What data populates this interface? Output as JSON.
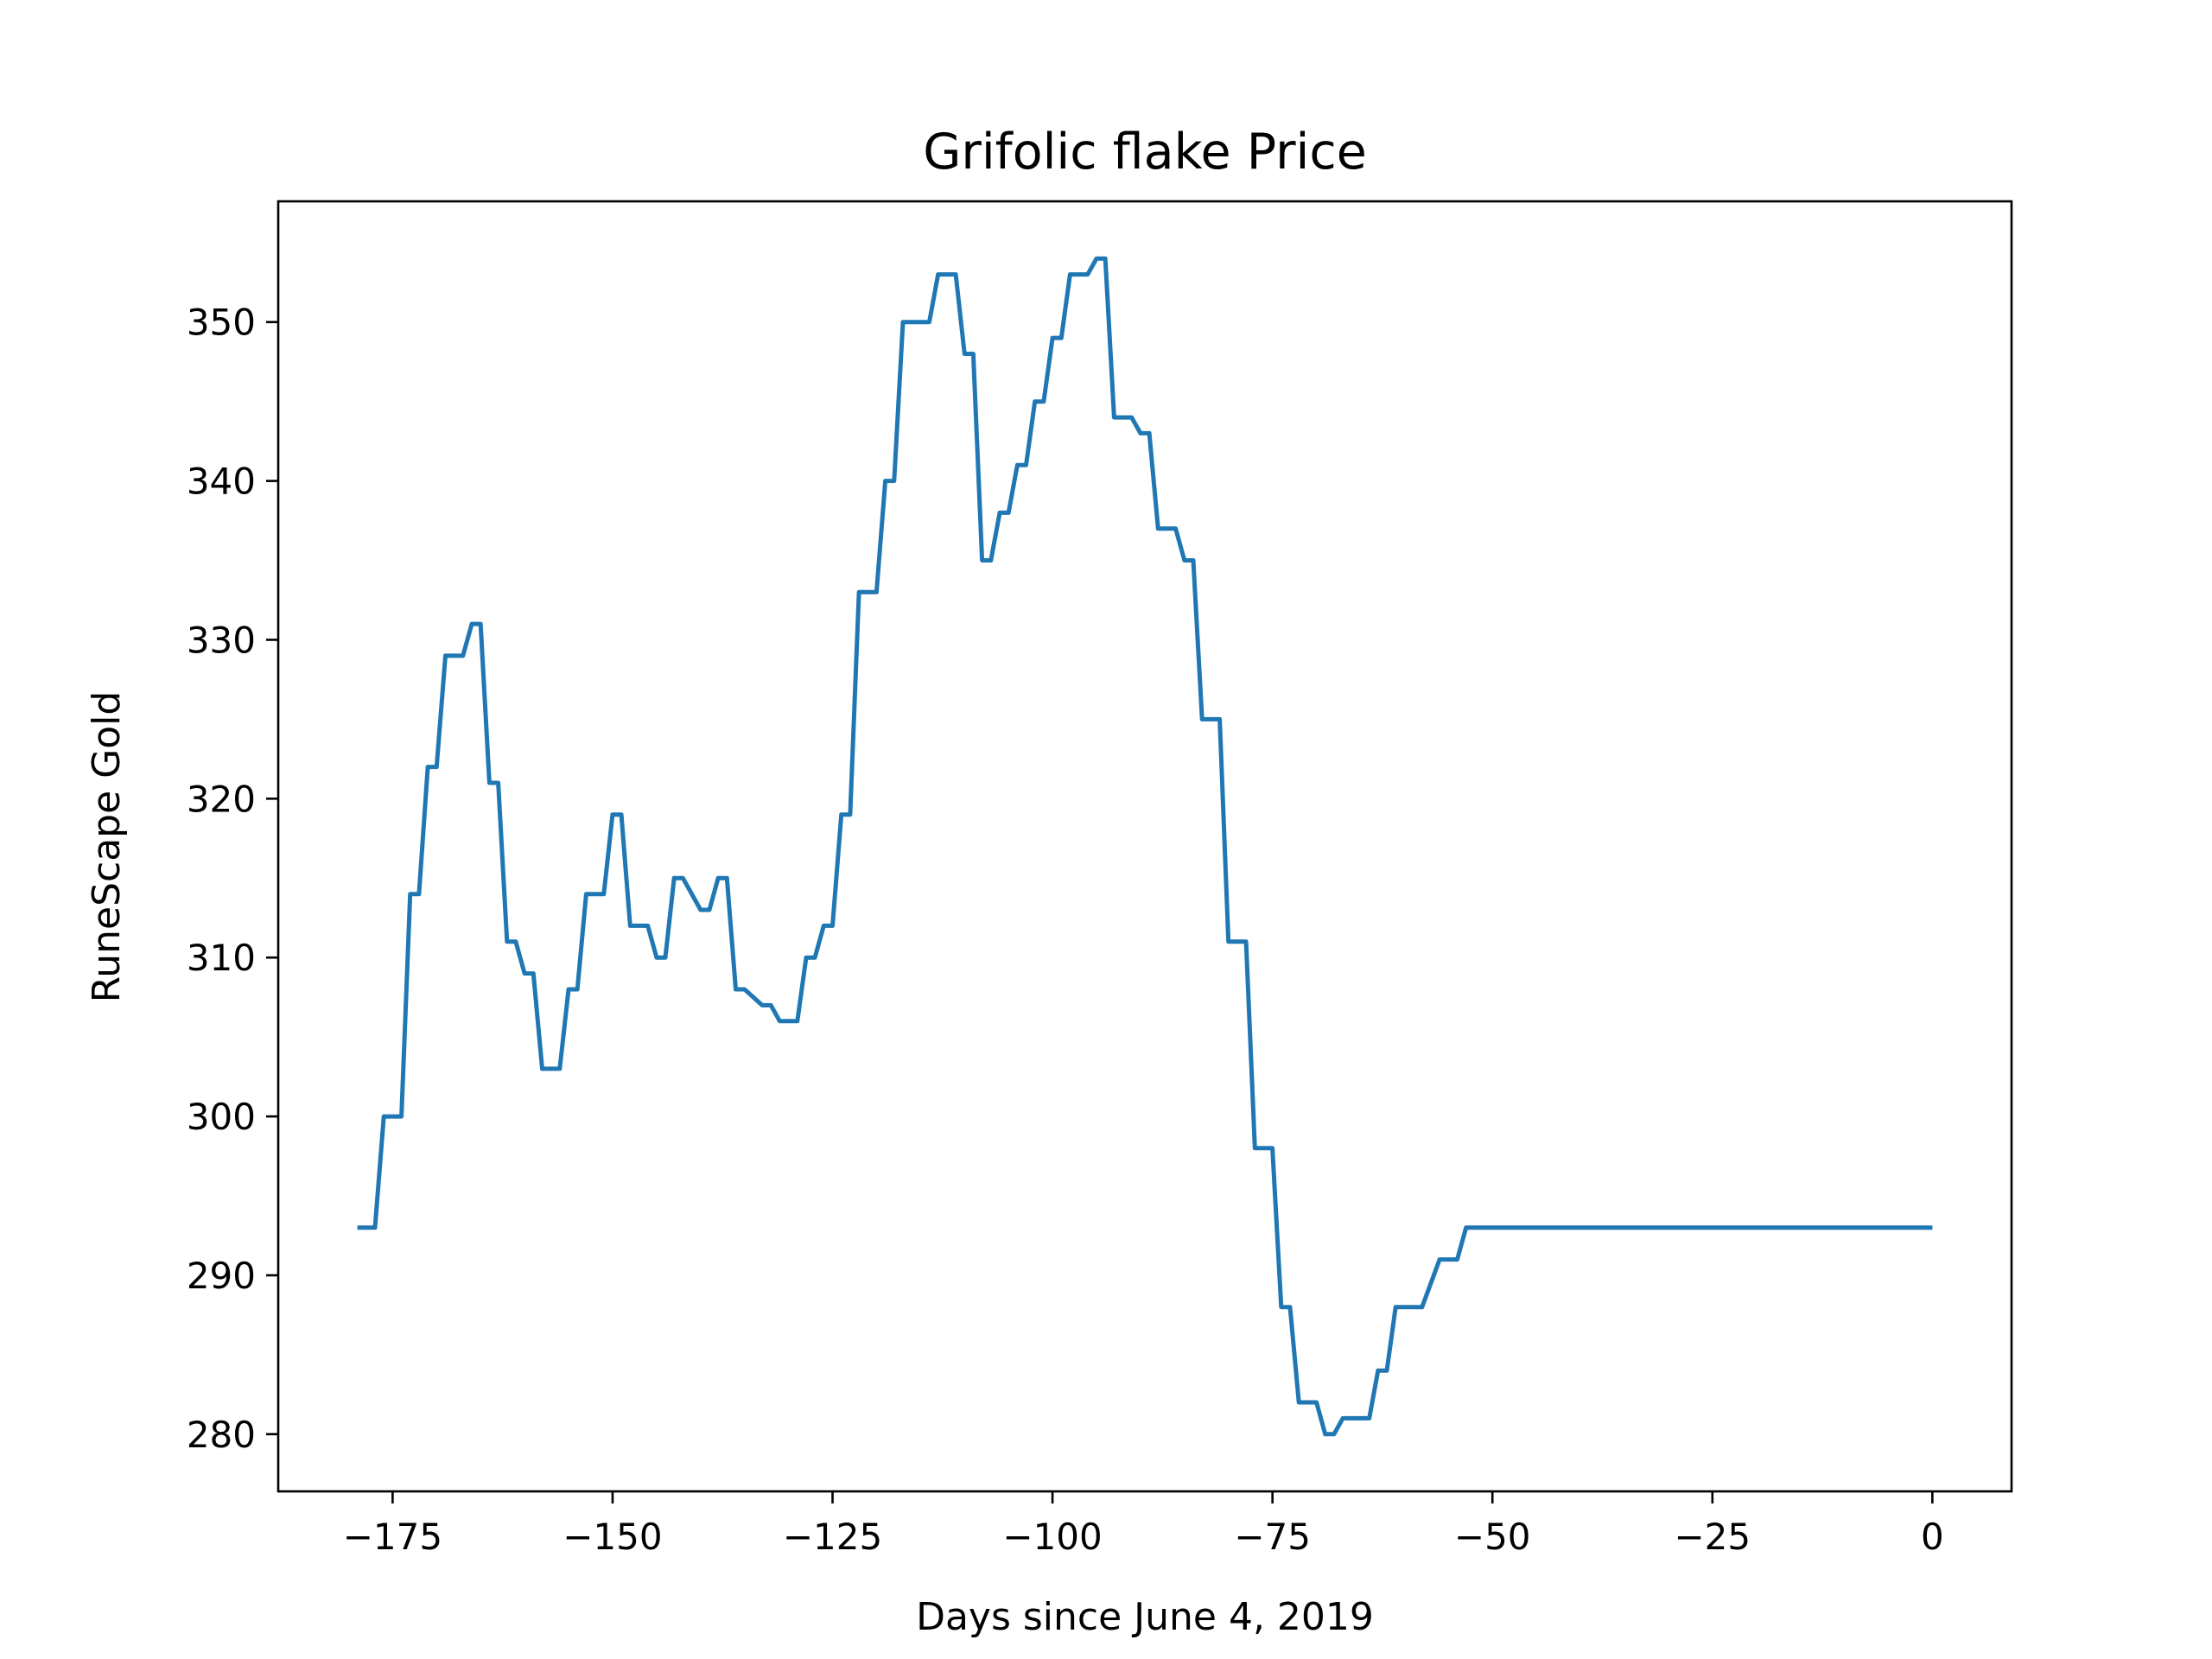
{
  "chart_data": {
    "type": "line",
    "title": "Grifolic flake Price",
    "xlabel": "Days since June 4, 2019",
    "ylabel": "RuneScape Gold",
    "xlim": [
      -188,
      9
    ],
    "ylim": [
      276.4,
      357.6
    ],
    "x_ticks": [
      -175,
      -150,
      -125,
      -100,
      -75,
      -50,
      -25,
      0
    ],
    "x_tick_labels": [
      "−175",
      "−150",
      "−125",
      "−100",
      "−75",
      "−50",
      "−25",
      "0"
    ],
    "y_ticks": [
      280,
      290,
      300,
      310,
      320,
      330,
      340,
      350
    ],
    "y_tick_labels": [
      "280",
      "290",
      "300",
      "310",
      "320",
      "330",
      "340",
      "350"
    ],
    "grid": false,
    "legend": false,
    "series": [
      {
        "color": "#1f77b4",
        "x": [
          -179,
          -177,
          -176,
          -174,
          -173,
          -172,
          -171,
          -170,
          -169,
          -167,
          -166,
          -165,
          -164,
          -163,
          -162,
          -161,
          -160,
          -159,
          -158,
          -156,
          -155,
          -154,
          -153,
          -151,
          -150,
          -149,
          -148,
          -146,
          -145,
          -144,
          -143,
          -142,
          -140,
          -139,
          -138,
          -137,
          -136,
          -135,
          -133,
          -132,
          -131,
          -129,
          -128,
          -127,
          -126,
          -125,
          -124,
          -123,
          -122,
          -120,
          -119,
          -118,
          -117,
          -116,
          -114,
          -113,
          -111,
          -110,
          -109,
          -108,
          -107,
          -106,
          -105,
          -104,
          -103,
          -102,
          -101,
          -100,
          -99,
          -98,
          -97,
          -96,
          -95,
          -94,
          -93,
          -92,
          -91,
          -90,
          -89,
          -88,
          -86,
          -85,
          -84,
          -83,
          -81,
          -80,
          -78,
          -77,
          -75,
          -74,
          -73,
          -72,
          -70,
          -69,
          -68,
          -67,
          -66,
          -65,
          -64,
          -63,
          -62,
          -61,
          -60,
          -59,
          -58,
          -56,
          -55,
          -54,
          -53,
          -51,
          -50,
          -49,
          -48,
          -47,
          -46,
          -45,
          -44,
          -43,
          -42,
          -41,
          -40,
          -39,
          -38,
          -37,
          -36,
          -35,
          -34,
          -33,
          -32,
          -31,
          -30,
          -29,
          -28,
          -27,
          -26,
          -25,
          -24,
          -23,
          -21,
          -20,
          -19,
          -18,
          -16,
          -15,
          -14,
          -13,
          -11,
          -10,
          -9,
          -8,
          -7,
          -6,
          -5,
          -4,
          -3,
          -2,
          -1,
          0
        ],
        "y": [
          293,
          293,
          300,
          300,
          314,
          314,
          322,
          322,
          329,
          329,
          331,
          331,
          321,
          321,
          311,
          311,
          309,
          309,
          303,
          303,
          308,
          308,
          314,
          314,
          319,
          319,
          312,
          312,
          310,
          310,
          315,
          315,
          313,
          313,
          315,
          315,
          308,
          308,
          307,
          307,
          306,
          306,
          310,
          310,
          312,
          312,
          319,
          319,
          333,
          333,
          340,
          340,
          350,
          350,
          350,
          353,
          353,
          348,
          348,
          335,
          335,
          338,
          338,
          341,
          341,
          345,
          345,
          349,
          349,
          353,
          353,
          353,
          354,
          354,
          344,
          344,
          344,
          343,
          343,
          337,
          337,
          335,
          335,
          325,
          325,
          311,
          311,
          298,
          298,
          288,
          288,
          282,
          282,
          280,
          280,
          281,
          281,
          281,
          281,
          284,
          284,
          288,
          288,
          288,
          288,
          291,
          291,
          291,
          293,
          293,
          293,
          293,
          293,
          293,
          293,
          293,
          293,
          293,
          293,
          293,
          293,
          293,
          293,
          293,
          293,
          293,
          293,
          293,
          293,
          293,
          293,
          293,
          293,
          293,
          293,
          293,
          293,
          293,
          293,
          293,
          293,
          293,
          293,
          293,
          293,
          293,
          293,
          293,
          293,
          293,
          293,
          293,
          293,
          293,
          293,
          293,
          293,
          293
        ]
      }
    ]
  }
}
